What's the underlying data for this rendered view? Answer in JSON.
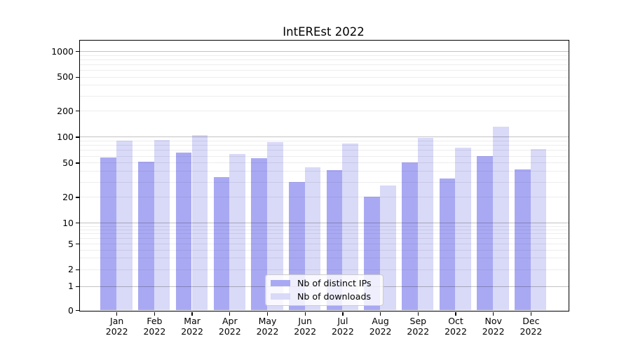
{
  "title": "IntEREst 2022",
  "legend": {
    "items": [
      {
        "label": "Nb of distinct IPs",
        "color": "#a9a9f3"
      },
      {
        "label": "Nb of downloads",
        "color": "#d9d9f8"
      }
    ]
  },
  "y_axis": {
    "ticks": [
      {
        "label": "1000",
        "value": 1000
      },
      {
        "label": "500",
        "value": 500
      },
      {
        "label": "200",
        "value": 200
      },
      {
        "label": "100",
        "value": 100
      },
      {
        "label": "50",
        "value": 50
      },
      {
        "label": "20",
        "value": 20
      },
      {
        "label": "10",
        "value": 10
      },
      {
        "label": "5",
        "value": 5
      },
      {
        "label": "2",
        "value": 2
      },
      {
        "label": "1",
        "value": 1
      },
      {
        "label": "0",
        "value": 0
      }
    ]
  },
  "x_axis": {
    "year": "2022",
    "months": [
      "Jan",
      "Feb",
      "Mar",
      "Apr",
      "May",
      "Jun",
      "Jul",
      "Aug",
      "Sep",
      "Oct",
      "Nov",
      "Dec"
    ]
  },
  "chart_data": {
    "type": "bar",
    "title": "IntEREst 2022",
    "categories": [
      "Jan 2022",
      "Feb 2022",
      "Mar 2022",
      "Apr 2022",
      "May 2022",
      "Jun 2022",
      "Jul 2022",
      "Aug 2022",
      "Sep 2022",
      "Oct 2022",
      "Nov 2022",
      "Dec 2022"
    ],
    "series": [
      {
        "name": "Nb of distinct IPs",
        "color": "#a9a9f3",
        "values": [
          57,
          51,
          66,
          34,
          56,
          30,
          41,
          20,
          50,
          33,
          60,
          42
        ]
      },
      {
        "name": "Nb of downloads",
        "color": "#d9d9f8",
        "values": [
          90,
          92,
          105,
          63,
          87,
          44,
          84,
          27,
          97,
          74,
          130,
          72
        ]
      }
    ],
    "yscale": "symlog",
    "yticks": [
      0,
      1,
      2,
      5,
      10,
      20,
      50,
      100,
      200,
      500,
      1000
    ],
    "ylim": [
      0,
      1300
    ],
    "grid": true,
    "legend_position": "lower center"
  }
}
